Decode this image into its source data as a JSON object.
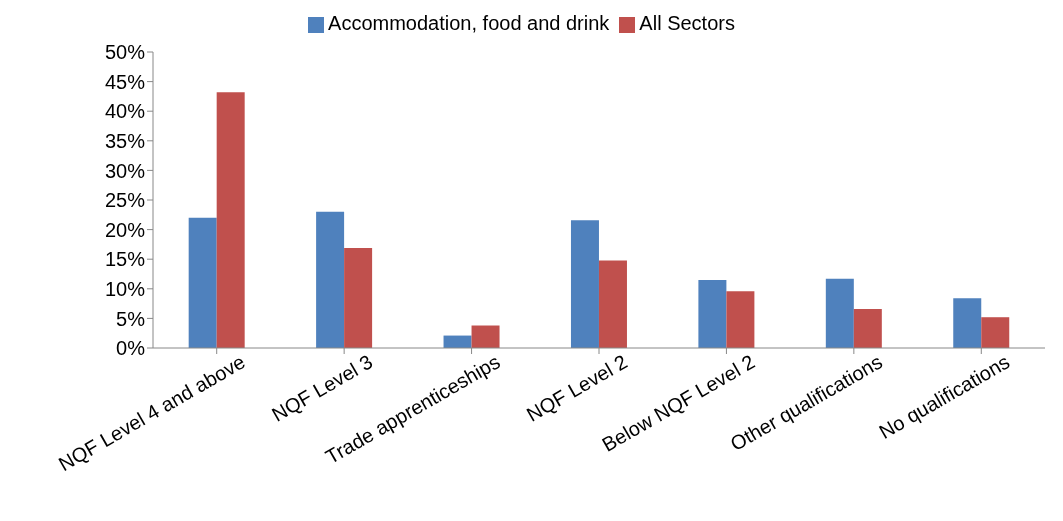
{
  "chart_data": {
    "type": "bar",
    "categories": [
      "NQF Level 4 and above",
      "NQF Level 3",
      "Trade apprenticeships",
      "NQF Level 2",
      "Below NQF Level 2",
      "Other qualifications",
      "No qualifications"
    ],
    "series": [
      {
        "name": "Accommodation, food and drink",
        "color": "#4f81bd",
        "values": [
          22.0,
          23.0,
          2.1,
          21.6,
          11.5,
          11.7,
          8.4
        ]
      },
      {
        "name": "All Sectors",
        "color": "#c0504d",
        "values": [
          43.2,
          16.9,
          3.8,
          14.8,
          9.6,
          6.6,
          5.2
        ]
      }
    ],
    "ylim": [
      0,
      50
    ],
    "yticks": [
      {
        "value": 0,
        "label": "0%"
      },
      {
        "value": 5,
        "label": "5%"
      },
      {
        "value": 10,
        "label": "10%"
      },
      {
        "value": 15,
        "label": "15%"
      },
      {
        "value": 20,
        "label": "20%"
      },
      {
        "value": 25,
        "label": "25%"
      },
      {
        "value": 30,
        "label": "30%"
      },
      {
        "value": 35,
        "label": "35%"
      },
      {
        "value": 40,
        "label": "40%"
      },
      {
        "value": 45,
        "label": "45%"
      },
      {
        "value": 50,
        "label": "50%"
      }
    ],
    "grid": false,
    "legend": "top"
  }
}
